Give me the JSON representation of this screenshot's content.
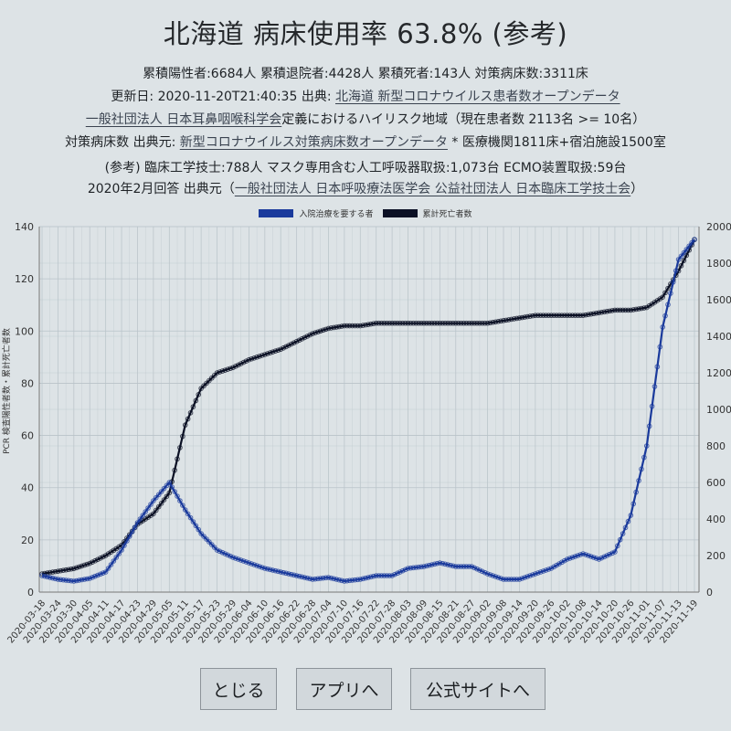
{
  "header": {
    "title": "北海道 病床使用率 63.8% (参考)",
    "summary": "累積陽性者:6684人 累積退院者:4428人 累積死者:143人 対策病床数:3311床",
    "updated_prefix": "更新日: 2020-11-20T21:40:35 出典: ",
    "updated_link": "北海道 新型コロナウイルス患者数オープンデータ",
    "risk_link": "一般社団法人 日本耳鼻咽喉科学会",
    "risk_text": "定義におけるハイリスク地域（現在患者数 2113名 >= 10名）",
    "beds_prefix": "対策病床数 出典元: ",
    "beds_link": "新型コロナウイルス対策病床数オープンデータ",
    "beds_suffix": " * 医療機関1811床+宿泊施設1500室",
    "ref_line": "(参考) 臨床工学技士:788人 マスク専用含む人工呼吸器取扱:1,073台 ECMO装置取扱:59台",
    "ref_source_prefix": "2020年2月回答 出典元（",
    "ref_source_link": "一般社団法人 日本呼吸療法医学会 公益社団法人 日本臨床工学技士会",
    "ref_source_suffix": "）"
  },
  "buttons": {
    "close": "とじる",
    "app": "アプリへ",
    "official": "公式サイトへ"
  },
  "colors": {
    "hospitalized": "#1a3a9c",
    "deaths": "#0b1024",
    "background": "#dde3e6",
    "grid": "#b9c3c9"
  },
  "chart_data": {
    "type": "line",
    "title": "",
    "legend": [
      {
        "name": "入院治療を要する者",
        "color": "#1a3a9c",
        "axis": "right"
      },
      {
        "name": "累計死亡者数",
        "color": "#0b1024",
        "axis": "left"
      }
    ],
    "legend_position": "top",
    "ylabel_left": "PCR 検査陽性者数・累計死亡者数",
    "ylabel_right": "",
    "ylim_left": [
      0,
      140
    ],
    "ylim_right": [
      0,
      2000
    ],
    "yticks_left": [
      0,
      20,
      40,
      60,
      80,
      100,
      120,
      140
    ],
    "yticks_right": [
      0,
      200,
      400,
      600,
      800,
      1000,
      1200,
      1400,
      1600,
      1800,
      2000
    ],
    "grid": true,
    "x_tick_labels": [
      "2020-03-18",
      "2020-03-24",
      "2020-03-30",
      "2020-04-05",
      "2020-04-11",
      "2020-04-17",
      "2020-04-23",
      "2020-04-29",
      "2020-05-05",
      "2020-05-11",
      "2020-05-17",
      "2020-05-23",
      "2020-05-29",
      "2020-06-04",
      "2020-06-10",
      "2020-06-16",
      "2020-06-22",
      "2020-06-28",
      "2020-07-04",
      "2020-07-10",
      "2020-07-16",
      "2020-07-22",
      "2020-07-28",
      "2020-08-03",
      "2020-08-09",
      "2020-08-15",
      "2020-08-21",
      "2020-08-27",
      "2020-09-02",
      "2020-09-08",
      "2020-09-14",
      "2020-09-20",
      "2020-09-26",
      "2020-10-02",
      "2020-10-08",
      "2020-10-14",
      "2020-10-20",
      "2020-10-26",
      "2020-11-01",
      "2020-11-07",
      "2020-11-13",
      "2020-11-19"
    ],
    "series": [
      {
        "name": "入院治療を要する者",
        "axis": "right",
        "values": [
          90,
          70,
          60,
          75,
          110,
          230,
          380,
          500,
          600,
          450,
          320,
          230,
          190,
          160,
          130,
          110,
          90,
          70,
          80,
          60,
          70,
          90,
          90,
          130,
          140,
          160,
          140,
          140,
          100,
          70,
          70,
          100,
          130,
          180,
          210,
          180,
          220,
          420,
          800,
          1450,
          1820,
          1930
        ]
      },
      {
        "name": "累計死亡者数",
        "axis": "left",
        "values": [
          7,
          8,
          9,
          11,
          14,
          18,
          26,
          30,
          38,
          64,
          78,
          84,
          86,
          89,
          91,
          93,
          96,
          99,
          101,
          102,
          102,
          103,
          103,
          103,
          103,
          103,
          103,
          103,
          103,
          104,
          105,
          106,
          106,
          106,
          106,
          107,
          108,
          108,
          109,
          113,
          123,
          135
        ]
      }
    ]
  }
}
